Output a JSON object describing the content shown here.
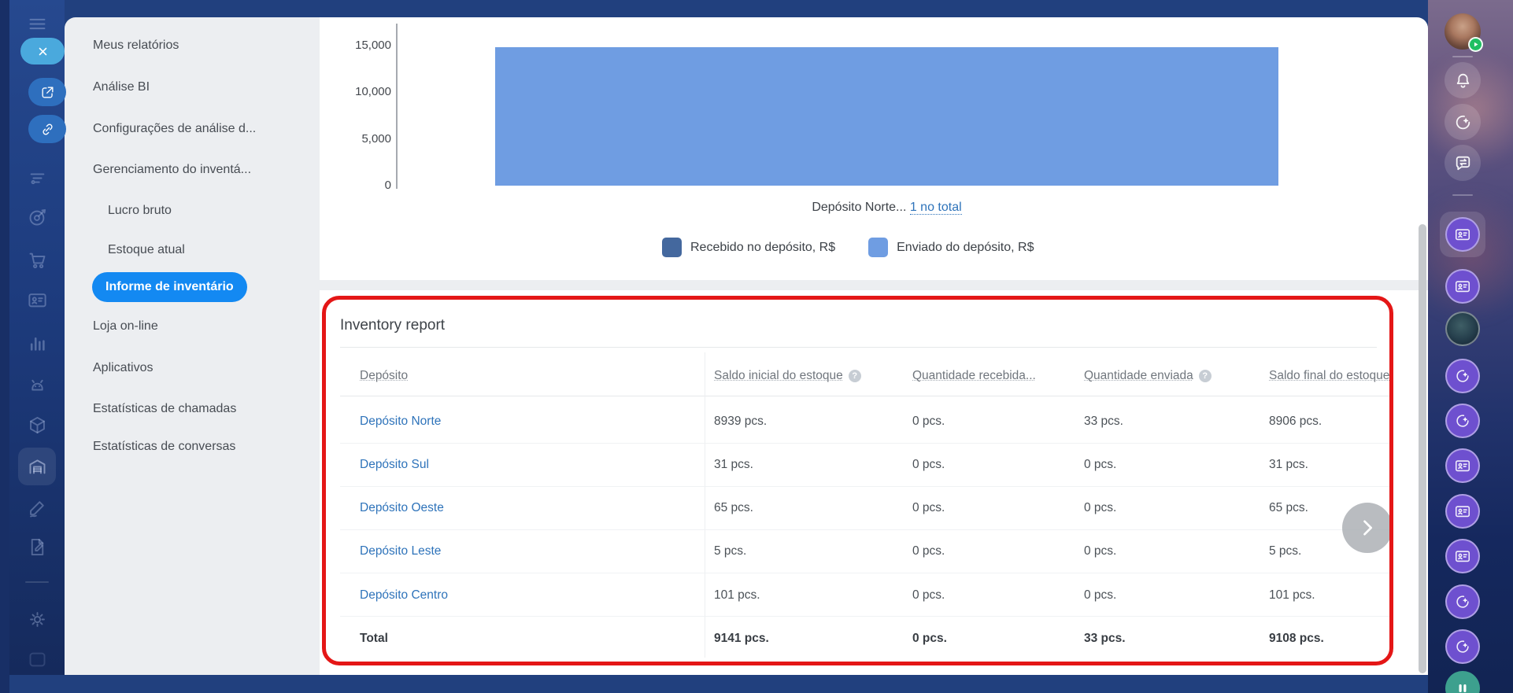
{
  "colors": {
    "accent_pill": "#1389f2",
    "link_blue": "#2e73ba",
    "bar_light": "#6f9de2",
    "bar_dark": "#44689e",
    "annotation_red": "#e41616"
  },
  "sidebar_menu": {
    "items": [
      {
        "label": "Meus relatórios",
        "level": 1,
        "active": false
      },
      {
        "label": "Análise BI",
        "level": 1,
        "active": false
      },
      {
        "label": "Configurações de análise d...",
        "level": 1,
        "active": false
      },
      {
        "label": "Gerenciamento do inventá...",
        "level": 1,
        "active": false
      },
      {
        "label": "Lucro bruto",
        "level": 2,
        "active": false
      },
      {
        "label": "Estoque atual",
        "level": 2,
        "active": false
      },
      {
        "label": "Informe de inventário",
        "level": 2,
        "active": true
      },
      {
        "label": "Loja on-line",
        "level": 1,
        "active": false
      },
      {
        "label": "Aplicativos",
        "level": 1,
        "active": false
      },
      {
        "label": "Estatísticas de chamadas",
        "level": 1,
        "active": false
      },
      {
        "label": "Estatísticas de conversas",
        "level": 1,
        "active": false
      }
    ]
  },
  "icon_rail": {
    "icons": [
      "menu",
      "close",
      "external-link",
      "copy-link",
      "filter",
      "target",
      "cart",
      "contact-card",
      "bar-chart",
      "android",
      "product-box",
      "warehouse",
      "pencil",
      "document-edit",
      "divider",
      "gear",
      "ghost-square"
    ]
  },
  "chart": {
    "x_label": "Depósito Norte... ",
    "x_link": "1 no total"
  },
  "chart_data": {
    "type": "bar",
    "title": "",
    "categories": [
      "Depósito Norte"
    ],
    "series": [
      {
        "name": "Recebido no depósito, R$",
        "values": [
          0
        ],
        "color": "#44689e"
      },
      {
        "name": "Enviado do depósito, R$",
        "values": [
          14800
        ],
        "color": "#6f9de2"
      }
    ],
    "xlabel": "",
    "ylabel": "",
    "ylim": [
      0,
      15000
    ],
    "y_ticks": [
      0,
      5000,
      10000,
      15000
    ],
    "y_tick_labels": [
      "0",
      "5,000",
      "10,000",
      "15,000"
    ],
    "grid": false,
    "legend_position": "bottom",
    "x_axis_note": "Depósito Norte... 1 no total"
  },
  "report": {
    "title": "Inventory report",
    "columns": [
      {
        "label": "Depósito",
        "help": false
      },
      {
        "label": "Saldo inicial do estoque",
        "help": true
      },
      {
        "label": "Quantidade recebida...",
        "help": false
      },
      {
        "label": "Quantidade enviada",
        "help": true
      },
      {
        "label": "Saldo final do estoque",
        "help": false
      }
    ],
    "help_glyph": "?",
    "rows": [
      {
        "name": "Depósito Norte",
        "initial": "8939 pcs.",
        "received": "0 pcs.",
        "sent": "33 pcs.",
        "final": "8906 pcs."
      },
      {
        "name": "Depósito Sul",
        "initial": "31 pcs.",
        "received": "0 pcs.",
        "sent": "0 pcs.",
        "final": "31 pcs."
      },
      {
        "name": "Depósito Oeste",
        "initial": "65 pcs.",
        "received": "0 pcs.",
        "sent": "0 pcs.",
        "final": "65 pcs."
      },
      {
        "name": "Depósito Leste",
        "initial": "5 pcs.",
        "received": "0 pcs.",
        "sent": "0 pcs.",
        "final": "5 pcs."
      },
      {
        "name": "Depósito Centro",
        "initial": "101 pcs.",
        "received": "0 pcs.",
        "sent": "0 pcs.",
        "final": "101 pcs."
      }
    ],
    "total": {
      "label": "Total",
      "initial": "9141 pcs.",
      "received": "0 pcs.",
      "sent": "33 pcs.",
      "final": "9108 pcs."
    }
  },
  "right_rail": {
    "items": [
      "user-avatar",
      "divider",
      "bell",
      "copilot",
      "chat-transfer",
      "divider",
      "contact-card-active",
      "contact-card",
      "user-avatar-2",
      "copilot",
      "copilot",
      "contact-card",
      "contact-card",
      "contact-card",
      "copilot",
      "copilot",
      "status-green"
    ]
  }
}
